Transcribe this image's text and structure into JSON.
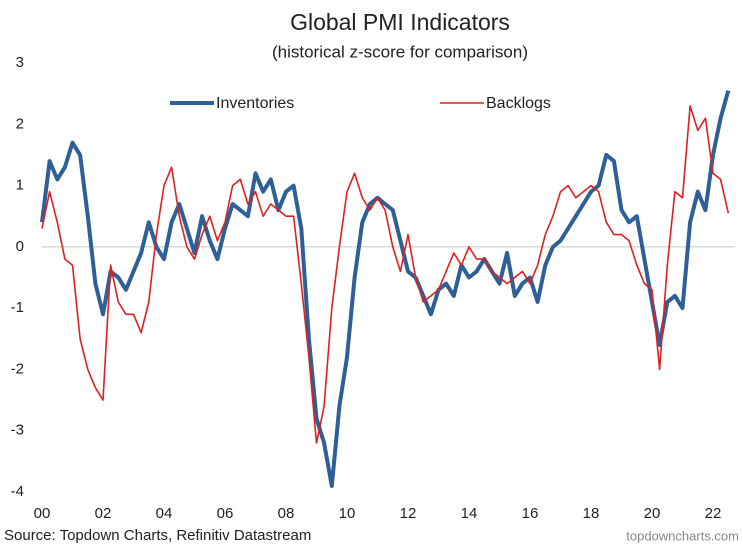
{
  "chart_data": {
    "type": "line",
    "title": "Global PMI Indicators",
    "subtitle": "(historical z-score for comparison)",
    "source": "Source: Topdown Charts, Refinitiv Datastream",
    "watermark": "topdowncharts.com",
    "x": [
      2000,
      2000.25,
      2000.5,
      2000.75,
      2001,
      2001.25,
      2001.5,
      2001.75,
      2002,
      2002.25,
      2002.5,
      2002.75,
      2003,
      2003.25,
      2003.5,
      2003.75,
      2004,
      2004.25,
      2004.5,
      2004.75,
      2005,
      2005.25,
      2005.5,
      2005.75,
      2006,
      2006.25,
      2006.5,
      2006.75,
      2007,
      2007.25,
      2007.5,
      2007.75,
      2008,
      2008.25,
      2008.5,
      2008.75,
      2009,
      2009.25,
      2009.5,
      2009.75,
      2010,
      2010.25,
      2010.5,
      2010.75,
      2011,
      2011.25,
      2011.5,
      2011.75,
      2012,
      2012.25,
      2012.5,
      2012.75,
      2013,
      2013.25,
      2013.5,
      2013.75,
      2014,
      2014.25,
      2014.5,
      2014.75,
      2015,
      2015.25,
      2015.5,
      2015.75,
      2016,
      2016.25,
      2016.5,
      2016.75,
      2017,
      2017.25,
      2017.5,
      2017.75,
      2018,
      2018.25,
      2018.5,
      2018.75,
      2019,
      2019.25,
      2019.5,
      2019.75,
      2020,
      2020.25,
      2020.5,
      2020.75,
      2021,
      2021.25,
      2021.5,
      2021.75,
      2022,
      2022.25,
      2022.5
    ],
    "series": [
      {
        "name": "Inventories",
        "color": "#2e5f97",
        "width": 4,
        "values": [
          0.4,
          1.4,
          1.1,
          1.3,
          1.7,
          1.5,
          0.5,
          -0.6,
          -1.1,
          -0.4,
          -0.5,
          -0.7,
          -0.4,
          -0.1,
          0.4,
          0.0,
          -0.2,
          0.4,
          0.7,
          0.3,
          -0.1,
          0.5,
          0.1,
          -0.2,
          0.3,
          0.7,
          0.6,
          0.5,
          1.2,
          0.9,
          1.1,
          0.6,
          0.9,
          1.0,
          0.3,
          -1.5,
          -2.8,
          -3.2,
          -3.9,
          -2.6,
          -1.8,
          -0.5,
          0.4,
          0.7,
          0.8,
          0.7,
          0.6,
          0.1,
          -0.4,
          -0.5,
          -0.8,
          -1.1,
          -0.7,
          -0.6,
          -0.8,
          -0.3,
          -0.5,
          -0.4,
          -0.2,
          -0.4,
          -0.6,
          -0.1,
          -0.8,
          -0.6,
          -0.5,
          -0.9,
          -0.3,
          0.0,
          0.1,
          0.3,
          0.5,
          0.7,
          0.9,
          1.0,
          1.5,
          1.4,
          0.6,
          0.4,
          0.5,
          -0.2,
          -0.9,
          -1.6,
          -0.9,
          -0.8,
          -1.0,
          0.4,
          0.9,
          0.6,
          1.5,
          2.1,
          2.55
        ]
      },
      {
        "name": "Backlogs",
        "color": "#e02020",
        "width": 1.6,
        "values": [
          0.3,
          0.9,
          0.4,
          -0.2,
          -0.3,
          -1.5,
          -2.0,
          -2.3,
          -2.5,
          -0.3,
          -0.9,
          -1.1,
          -1.1,
          -1.4,
          -0.9,
          0.2,
          1.0,
          1.3,
          0.5,
          0.0,
          -0.2,
          0.2,
          0.5,
          0.1,
          0.4,
          1.0,
          1.1,
          0.7,
          0.9,
          0.5,
          0.7,
          0.6,
          0.5,
          0.5,
          -0.6,
          -1.8,
          -3.2,
          -2.6,
          -1.0,
          0.0,
          0.9,
          1.2,
          0.8,
          0.6,
          0.8,
          0.6,
          0.0,
          -0.4,
          0.2,
          -0.5,
          -0.9,
          -0.8,
          -0.7,
          -0.4,
          -0.1,
          -0.3,
          0.0,
          -0.2,
          -0.2,
          -0.4,
          -0.5,
          -0.6,
          -0.5,
          -0.4,
          -0.6,
          -0.3,
          0.2,
          0.5,
          0.9,
          1.0,
          0.8,
          0.9,
          1.0,
          0.9,
          0.4,
          0.2,
          0.2,
          0.1,
          -0.3,
          -0.6,
          -0.7,
          -2.0,
          -0.3,
          0.9,
          0.8,
          2.3,
          1.9,
          2.1,
          1.2,
          1.1,
          0.55
        ]
      }
    ],
    "xlim": [
      2000,
      2023
    ],
    "xticks": [
      {
        "value": 2000,
        "label": "00"
      },
      {
        "value": 2002,
        "label": "02"
      },
      {
        "value": 2004,
        "label": "04"
      },
      {
        "value": 2006,
        "label": "06"
      },
      {
        "value": 2008,
        "label": "08"
      },
      {
        "value": 2010,
        "label": "10"
      },
      {
        "value": 2012,
        "label": "12"
      },
      {
        "value": 2014,
        "label": "14"
      },
      {
        "value": 2016,
        "label": "16"
      },
      {
        "value": 2018,
        "label": "18"
      },
      {
        "value": 2020,
        "label": "20"
      },
      {
        "value": 2022,
        "label": "22"
      }
    ],
    "ylim": [
      -4,
      3
    ],
    "yticks": [
      3,
      2,
      1,
      0,
      -1,
      -2,
      -3,
      -4
    ],
    "zero_line": true,
    "legend": "top"
  }
}
